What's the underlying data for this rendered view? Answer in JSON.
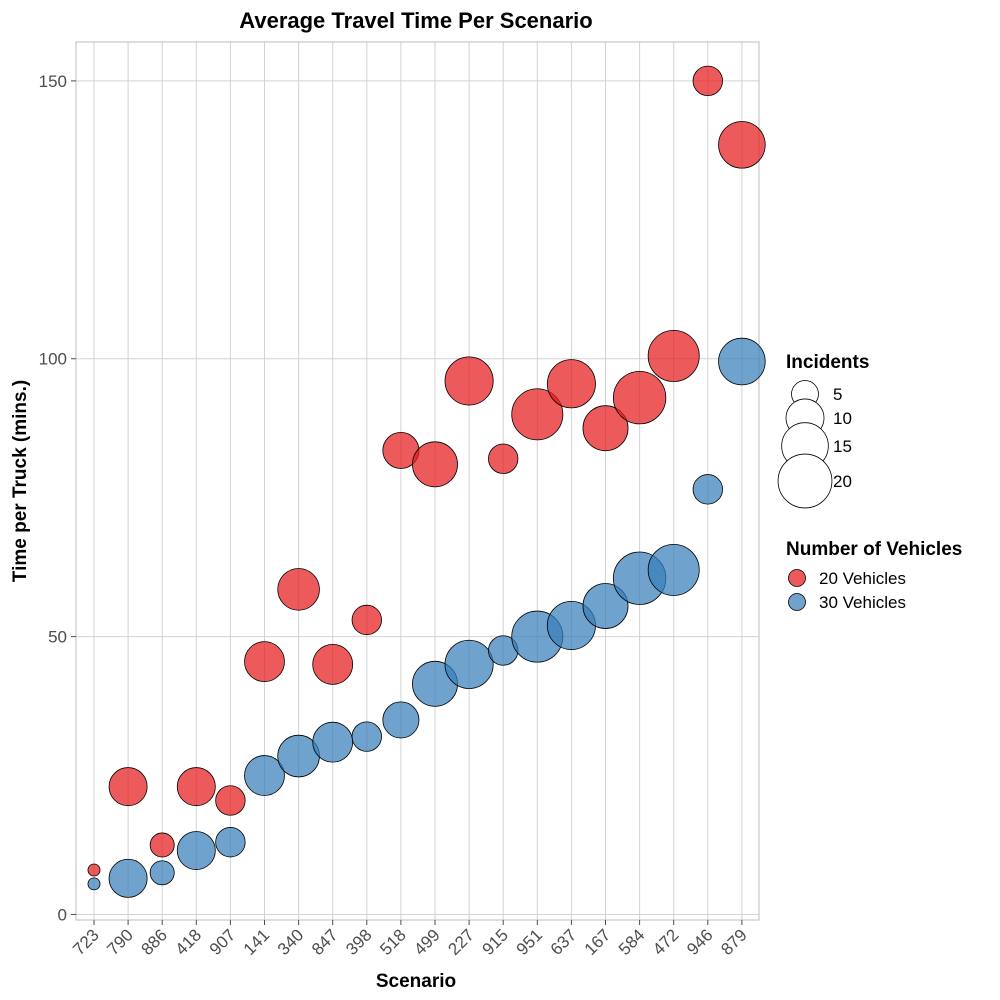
{
  "chart_data": {
    "type": "scatter",
    "title": "Average Travel Time Per Scenario",
    "xlabel": "Scenario",
    "ylabel": "Time per Truck (mins.)",
    "categories": [
      "723",
      "790",
      "886",
      "418",
      "907",
      "141",
      "340",
      "847",
      "398",
      "518",
      "499",
      "227",
      "915",
      "951",
      "637",
      "167",
      "584",
      "472",
      "946",
      "879"
    ],
    "ylim": [
      -1,
      157
    ],
    "yticks": [
      0,
      50,
      100,
      150
    ],
    "grid": true,
    "legend_position": "right",
    "size_legend": {
      "title": "Incidents",
      "values": [
        5,
        10,
        15,
        20
      ]
    },
    "color_legend": {
      "title": "Number of Vehicles",
      "entries": [
        "20 Vehicles",
        "30 Vehicles"
      ]
    },
    "colors": {
      "20 Vehicles": "#E41A1C",
      "30 Vehicles": "#377EB8"
    },
    "series": [
      {
        "name": "20 Vehicles",
        "points": [
          {
            "x": "723",
            "y": 8,
            "size": 1
          },
          {
            "x": "790",
            "y": 23,
            "size": 10
          },
          {
            "x": "886",
            "y": 12.5,
            "size": 4
          },
          {
            "x": "418",
            "y": 23,
            "size": 10
          },
          {
            "x": "907",
            "y": 20.5,
            "size": 6
          },
          {
            "x": "141",
            "y": 45.5,
            "size": 11
          },
          {
            "x": "340",
            "y": 58.5,
            "size": 12
          },
          {
            "x": "847",
            "y": 45,
            "size": 11
          },
          {
            "x": "398",
            "y": 53,
            "size": 6
          },
          {
            "x": "518",
            "y": 83.5,
            "size": 9
          },
          {
            "x": "499",
            "y": 81,
            "size": 14
          },
          {
            "x": "227",
            "y": 96,
            "size": 16
          },
          {
            "x": "915",
            "y": 82,
            "size": 6
          },
          {
            "x": "951",
            "y": 90,
            "size": 18
          },
          {
            "x": "637",
            "y": 95.5,
            "size": 16
          },
          {
            "x": "167",
            "y": 87.5,
            "size": 14
          },
          {
            "x": "584",
            "y": 93,
            "size": 19
          },
          {
            "x": "472",
            "y": 100.5,
            "size": 18
          },
          {
            "x": "946",
            "y": 150,
            "size": 6
          },
          {
            "x": "879",
            "y": 138.5,
            "size": 15
          }
        ]
      },
      {
        "name": "30 Vehicles",
        "points": [
          {
            "x": "723",
            "y": 5.5,
            "size": 1
          },
          {
            "x": "790",
            "y": 6.5,
            "size": 10
          },
          {
            "x": "886",
            "y": 7.5,
            "size": 4
          },
          {
            "x": "418",
            "y": 11.5,
            "size": 10
          },
          {
            "x": "907",
            "y": 13,
            "size": 6
          },
          {
            "x": "141",
            "y": 25,
            "size": 11
          },
          {
            "x": "340",
            "y": 28.5,
            "size": 12
          },
          {
            "x": "847",
            "y": 31,
            "size": 11
          },
          {
            "x": "398",
            "y": 32,
            "size": 6
          },
          {
            "x": "518",
            "y": 35,
            "size": 9
          },
          {
            "x": "499",
            "y": 41.5,
            "size": 14
          },
          {
            "x": "227",
            "y": 45,
            "size": 16
          },
          {
            "x": "915",
            "y": 47.5,
            "size": 6
          },
          {
            "x": "951",
            "y": 50,
            "size": 18
          },
          {
            "x": "637",
            "y": 52,
            "size": 16
          },
          {
            "x": "167",
            "y": 55.5,
            "size": 14
          },
          {
            "x": "584",
            "y": 60.5,
            "size": 19
          },
          {
            "x": "472",
            "y": 62,
            "size": 18
          },
          {
            "x": "946",
            "y": 76.5,
            "size": 6
          },
          {
            "x": "879",
            "y": 99.5,
            "size": 15
          }
        ]
      }
    ]
  }
}
